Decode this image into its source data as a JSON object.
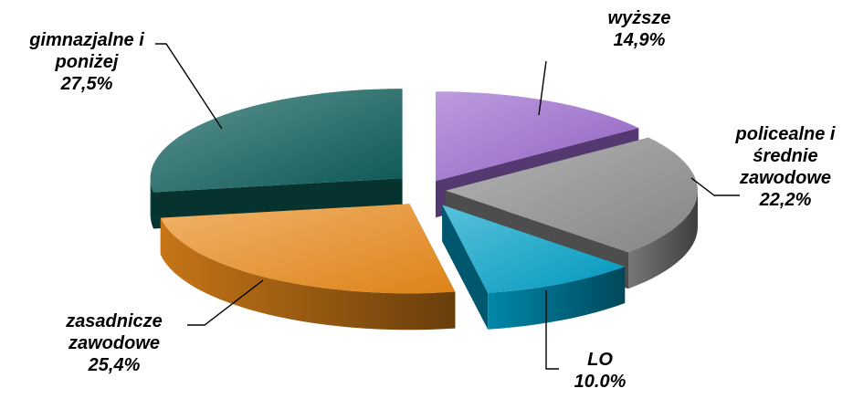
{
  "chart_data": {
    "type": "pie",
    "style": "3d-exploded",
    "title": "",
    "slices": [
      {
        "name": "wyższe",
        "label_lines": [
          "wyższe"
        ],
        "value": 14.9,
        "value_label": "14,9%",
        "color": "#9966cc"
      },
      {
        "name": "policealne i średnie zawodowe",
        "label_lines": [
          "policealne i",
          "średnie",
          "zawodowe"
        ],
        "value": 22.2,
        "value_label": "22,2%",
        "color": "#8c8c8c"
      },
      {
        "name": "LO",
        "label_lines": [
          "LO"
        ],
        "value": 10.0,
        "value_label": "10.0%",
        "color": "#00a0c8"
      },
      {
        "name": "zasadnicze zawodowe",
        "label_lines": [
          "zasadnicze",
          "zawodowe"
        ],
        "value": 25.4,
        "value_label": "25,4%",
        "color": "#e98a1a"
      },
      {
        "name": "gimnazjalne i poniżej",
        "label_lines": [
          "gimnazjalne i",
          "poniżej"
        ],
        "value": 27.5,
        "value_label": "27,5%",
        "color": "#0b5c58"
      }
    ],
    "legend": "none"
  }
}
